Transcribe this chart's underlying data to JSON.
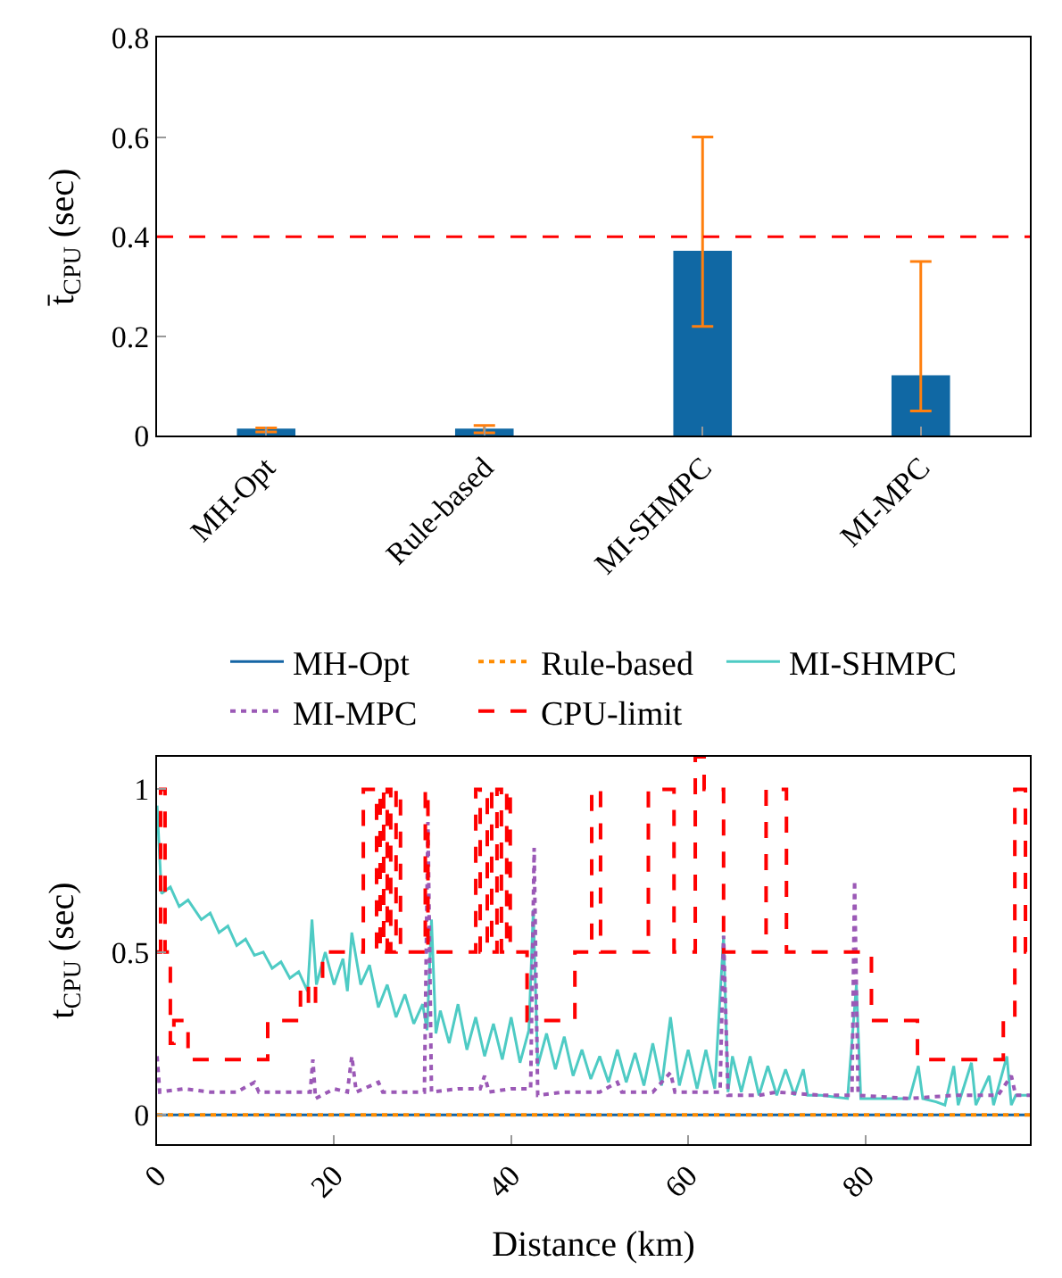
{
  "chart_data": [
    {
      "type": "bar",
      "ylabel": "t̄$_{CPU}$ (sec)",
      "categories": [
        "MH-Opt",
        "Rule-based",
        "MI-SHMPC",
        "MI-MPC"
      ],
      "values": [
        0.013,
        0.013,
        0.37,
        0.12
      ],
      "color": "#1068a4",
      "errors": [
        [
          0.008,
          0.016
        ],
        [
          0.006,
          0.021
        ],
        [
          0.22,
          0.6
        ],
        [
          0.05,
          0.35
        ]
      ],
      "ylim": [
        0,
        0.8
      ],
      "yticks": [
        {
          "value": 0,
          "label": "0"
        },
        0.2,
        0.4,
        0.6,
        0.8
      ],
      "ref_lines": [
        {
          "axis": "y",
          "value": 0.4,
          "color": "#ff0000",
          "line_style": "dashed"
        }
      ]
    },
    {
      "type": "line",
      "xlabel": "Distance (km)",
      "ylabel": "t$_{CPU}$ (sec)",
      "xlim": [
        0,
        98.6
      ],
      "ylim": [
        -0.09,
        1.1
      ],
      "xticks": [
        0,
        20,
        40,
        60,
        80
      ],
      "yticks": [
        0,
        0.5,
        1
      ],
      "legend": "top",
      "series": [
        {
          "name": "MH-Opt",
          "color": "#1565a5",
          "line_style": "solid",
          "x": [
            0,
            98.6
          ],
          "values": [
            0,
            0
          ]
        },
        {
          "name": "Rule-based",
          "color": "#ff8c00",
          "line_style": "dotted",
          "x": [
            0,
            98.6
          ],
          "values": [
            0,
            0
          ]
        },
        {
          "name": "MI-SHMPC",
          "color": "#4ecbc4",
          "line_style": "solid",
          "x": [
            0,
            0.5,
            1.5,
            2.5,
            3.5,
            5,
            6,
            7,
            8,
            9,
            10,
            11,
            12,
            13,
            14,
            15,
            16,
            17,
            17.5,
            18,
            19,
            20,
            21,
            21.5,
            22,
            23,
            24,
            25,
            26,
            27,
            28,
            29,
            30,
            30.5,
            31,
            31.5,
            32,
            33,
            34,
            35,
            36,
            37,
            38,
            39,
            40,
            41,
            42,
            42.5,
            43,
            44,
            45,
            46,
            47,
            48,
            49,
            50,
            51,
            52,
            53,
            54,
            55,
            56,
            57,
            58,
            59,
            60,
            61,
            62,
            63,
            64,
            64.5,
            65,
            66,
            67,
            68,
            69,
            70,
            71,
            72,
            73,
            73.5,
            75,
            78,
            79,
            79.5,
            82,
            85,
            86,
            86.5,
            88,
            89,
            90,
            90.5,
            92,
            92.5,
            94,
            94.5,
            96,
            96.5,
            97,
            98.6
          ],
          "values": [
            0.95,
            0.68,
            0.7,
            0.64,
            0.66,
            0.6,
            0.62,
            0.56,
            0.58,
            0.52,
            0.54,
            0.49,
            0.5,
            0.45,
            0.47,
            0.42,
            0.44,
            0.38,
            0.6,
            0.4,
            0.5,
            0.4,
            0.48,
            0.38,
            0.56,
            0.4,
            0.46,
            0.33,
            0.4,
            0.3,
            0.37,
            0.28,
            0.34,
            0.26,
            0.6,
            0.25,
            0.32,
            0.22,
            0.34,
            0.2,
            0.3,
            0.18,
            0.28,
            0.17,
            0.3,
            0.16,
            0.26,
            0.63,
            0.15,
            0.25,
            0.14,
            0.24,
            0.12,
            0.2,
            0.11,
            0.18,
            0.1,
            0.2,
            0.1,
            0.19,
            0.09,
            0.22,
            0.09,
            0.3,
            0.09,
            0.2,
            0.08,
            0.2,
            0.08,
            0.55,
            0.07,
            0.18,
            0.07,
            0.18,
            0.06,
            0.15,
            0.06,
            0.14,
            0.06,
            0.14,
            0.06,
            0.06,
            0.05,
            0.4,
            0.05,
            0.05,
            0.05,
            0.15,
            0.05,
            0.04,
            0.03,
            0.15,
            0.03,
            0.16,
            0.03,
            0.12,
            0.03,
            0.18,
            0.03,
            0.06,
            0.06
          ]
        },
        {
          "name": "MI-MPC",
          "color": "#9b59b6",
          "line_style": "dotted",
          "x": [
            0,
            0.3,
            3,
            6,
            9,
            11,
            11.5,
            14,
            17.3,
            17.6,
            17.9,
            20,
            21.5,
            22,
            22.5,
            25,
            25.5,
            28,
            30.2,
            30.6,
            31,
            34,
            36.5,
            37,
            37.5,
            40,
            42.2,
            42.6,
            43,
            46,
            50,
            52,
            52.5,
            56,
            58,
            58.5,
            63.6,
            64,
            64.5,
            68,
            70,
            75,
            78.5,
            78.8,
            79.2,
            85,
            90,
            95,
            96.5,
            97,
            98.6
          ],
          "values": [
            0.18,
            0.07,
            0.08,
            0.07,
            0.07,
            0.1,
            0.07,
            0.07,
            0.07,
            0.17,
            0.05,
            0.08,
            0.07,
            0.18,
            0.07,
            0.1,
            0.07,
            0.07,
            0.07,
            0.9,
            0.07,
            0.08,
            0.08,
            0.12,
            0.07,
            0.08,
            0.08,
            0.82,
            0.06,
            0.07,
            0.07,
            0.1,
            0.07,
            0.07,
            0.13,
            0.07,
            0.07,
            0.55,
            0.06,
            0.06,
            0.07,
            0.06,
            0.06,
            0.72,
            0.06,
            0.05,
            0.06,
            0.06,
            0.12,
            0.06,
            0.06
          ]
        },
        {
          "name": "CPU-limit",
          "type": "step",
          "color": "#ff0000",
          "line_style": "dashed",
          "x": [
            0,
            0.4,
            0.9,
            1.5,
            1.9,
            3.5,
            12.5,
            16.2,
            17.1,
            17.9,
            18.7,
            23.3,
            24.8,
            25.2,
            25.6,
            26.0,
            26.4,
            27.0,
            27.5,
            30.3,
            30.6,
            36.0,
            36.5,
            37.3,
            37.8,
            38.4,
            38.9,
            39.5,
            39.9,
            41.8,
            47.2,
            49.1,
            50.1,
            55.5,
            58.4,
            60.8,
            61.8,
            64.0,
            68.8,
            71.1,
            80.7,
            85.9,
            95.6,
            96.9,
            98.1,
            98.6
          ],
          "values": [
            0.5,
            1,
            0.5,
            0.22,
            0.29,
            0.17,
            0.29,
            0.4,
            0.33,
            0.4,
            0.5,
            1,
            0.5,
            1,
            0.5,
            1,
            0.5,
            1,
            0.5,
            1,
            0.5,
            1,
            0.5,
            1,
            0.5,
            1,
            0.5,
            1,
            0.5,
            0.29,
            0.5,
            1,
            0.5,
            1,
            0.5,
            1.1,
            1,
            0.5,
            1,
            0.5,
            0.29,
            0.17,
            0.3,
            1,
            0.5,
            0.5
          ]
        }
      ]
    }
  ]
}
